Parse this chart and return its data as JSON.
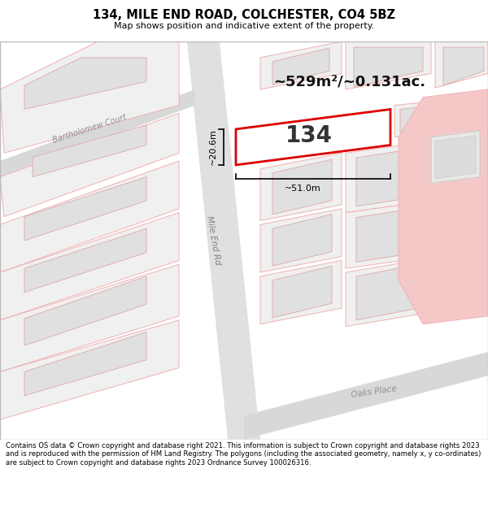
{
  "title": "134, MILE END ROAD, COLCHESTER, CO4 5BZ",
  "subtitle": "Map shows position and indicative extent of the property.",
  "footer": "Contains OS data © Crown copyright and database right 2021. This information is subject to Crown copyright and database rights 2023 and is reproduced with the permission of HM Land Registry. The polygons (including the associated geometry, namely x, y co-ordinates) are subject to Crown copyright and database rights 2023 Ordnance Survey 100026316.",
  "area_text": "~529m²/~0.131ac.",
  "property_label": "134",
  "dim_width": "~51.0m",
  "dim_height": "~20.6m",
  "street_mile_end": "Mile End Rd",
  "street_oaks_place": "Oaks Place",
  "street_bartholomew": "Bartholomew Court",
  "bg_color": "#ffffff",
  "map_bg": "#f8f8f8",
  "road_fill": "#e0e0e0",
  "block_fill": "#f0f0f0",
  "block_edge": "#f0b0b0",
  "inner_fill": "#e0e0e0",
  "inner_edge": "#e0b0b0",
  "prop_fill": "#ffffff",
  "prop_edge": "#dd0000",
  "pink_fill": "#f5c8c8",
  "pink_edge": "#f0b0b0",
  "dim_color": "#000000",
  "area_color": "#111111",
  "label_color": "#333333"
}
